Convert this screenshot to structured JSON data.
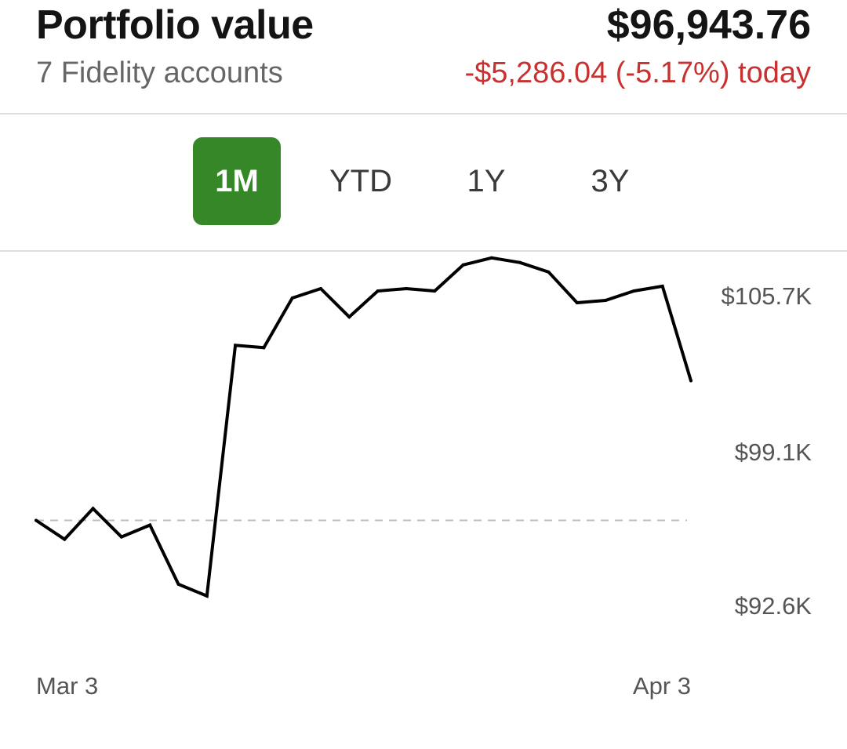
{
  "header": {
    "title": "Portfolio value",
    "subtitle": "7 Fidelity accounts",
    "total_value": "$96,943.76",
    "change_text": "-$5,286.04 (-5.17%) today",
    "change_color": "#c8312f"
  },
  "range_tabs": {
    "selected": "1M",
    "accent_color": "#368727",
    "items": [
      {
        "label": "1M"
      },
      {
        "label": "YTD"
      },
      {
        "label": "1Y"
      },
      {
        "label": "3Y"
      }
    ]
  },
  "chart_data": {
    "type": "line",
    "x_labels": [
      "Mar 3",
      "Apr 3"
    ],
    "y_tick_labels": [
      "$105.7K",
      "$99.1K",
      "$92.6K"
    ],
    "y_ticks": [
      105.7,
      99.1,
      92.6
    ],
    "baseline": 96.2,
    "line_color": "#000000",
    "baseline_style": "dashed",
    "values": [
      96.2,
      95.4,
      96.7,
      95.5,
      96.0,
      93.5,
      93.0,
      103.6,
      103.5,
      105.6,
      106.0,
      104.8,
      105.9,
      106.0,
      105.9,
      107.0,
      107.3,
      107.1,
      106.7,
      105.4,
      105.5,
      105.9,
      106.1,
      102.1
    ]
  }
}
